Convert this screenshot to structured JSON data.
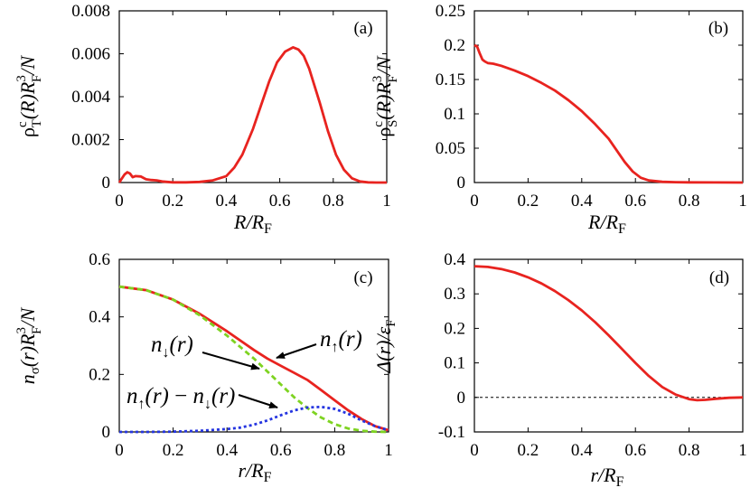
{
  "colors": {
    "red": "#e8231f",
    "green": "#7ed321",
    "blue": "#2535e0",
    "axis": "#000000"
  },
  "chart_data": [
    {
      "type": "line",
      "panel": "(a)",
      "ylabel_main": "ρ",
      "ylabel_sup": "c",
      "ylabel_sub": "T",
      "ylabel_mid": "(R)R",
      "ylabel_sub2": "F",
      "ylabel_sup2": "3",
      "ylabel_end": "/N",
      "xlabel_main": "R/R",
      "xlabel_sub": "F",
      "xlim": [
        0,
        1
      ],
      "ylim": [
        0,
        0.008
      ],
      "xticks": [
        0,
        0.2,
        0.4,
        0.6,
        0.8,
        1
      ],
      "xtick_labels": [
        "0",
        "0.2",
        "0.4",
        "0.6",
        "0.8",
        "1"
      ],
      "yticks": [
        0,
        0.002,
        0.004,
        0.006,
        0.008
      ],
      "ytick_labels": [
        "0",
        "0.002",
        "0.004",
        "0.006",
        "0.008"
      ],
      "series": [
        {
          "name": "rho_T",
          "color": "#e8231f",
          "dash": "",
          "x": [
            0,
            0.01,
            0.02,
            0.03,
            0.04,
            0.05,
            0.06,
            0.08,
            0.1,
            0.12,
            0.14,
            0.16,
            0.2,
            0.25,
            0.3,
            0.35,
            0.4,
            0.43,
            0.46,
            0.5,
            0.53,
            0.56,
            0.59,
            0.62,
            0.65,
            0.67,
            0.69,
            0.71,
            0.73,
            0.75,
            0.78,
            0.81,
            0.84,
            0.87,
            0.9,
            0.93,
            0.96,
            1.0
          ],
          "y": [
            0,
            0.0002,
            0.00038,
            0.00048,
            0.00042,
            0.00025,
            0.0003,
            0.00028,
            0.00015,
            0.00012,
            0.0001,
            5e-05,
            1e-05,
            1e-05,
            3e-05,
            0.0001,
            0.0003,
            0.0007,
            0.0013,
            0.0025,
            0.0036,
            0.0047,
            0.0056,
            0.0061,
            0.0063,
            0.0062,
            0.0059,
            0.0053,
            0.0045,
            0.0037,
            0.0024,
            0.0013,
            0.0006,
            0.0002,
            5e-05,
            1e-05,
            0,
            0
          ]
        }
      ],
      "annotations": []
    },
    {
      "type": "line",
      "panel": "(b)",
      "ylabel_main": "ρ",
      "ylabel_sup": "c",
      "ylabel_sub": "S",
      "ylabel_mid": "(R)R",
      "ylabel_sub2": "F",
      "ylabel_sup2": "3",
      "ylabel_end": "/N",
      "xlabel_main": "R/R",
      "xlabel_sub": "F",
      "xlim": [
        0,
        1
      ],
      "ylim": [
        0,
        0.25
      ],
      "xticks": [
        0,
        0.2,
        0.4,
        0.6,
        0.8,
        1
      ],
      "xtick_labels": [
        "0",
        "0.2",
        "0.4",
        "0.6",
        "0.8",
        "1"
      ],
      "yticks": [
        0,
        0.05,
        0.1,
        0.15,
        0.2,
        0.25
      ],
      "ytick_labels": [
        "0",
        "0.05",
        "0.1",
        "0.15",
        "0.2",
        "0.25"
      ],
      "series": [
        {
          "name": "rho_S",
          "color": "#e8231f",
          "dash": "",
          "x": [
            0,
            0.01,
            0.02,
            0.03,
            0.04,
            0.05,
            0.07,
            0.1,
            0.15,
            0.2,
            0.25,
            0.3,
            0.35,
            0.4,
            0.45,
            0.5,
            0.53,
            0.56,
            0.59,
            0.62,
            0.65,
            0.7,
            0.75,
            0.8,
            0.9,
            1.0
          ],
          "y": [
            0.2,
            0.198,
            0.188,
            0.179,
            0.176,
            0.174,
            0.173,
            0.17,
            0.163,
            0.155,
            0.145,
            0.134,
            0.12,
            0.104,
            0.085,
            0.064,
            0.047,
            0.03,
            0.016,
            0.007,
            0.003,
            0.001,
            0.0005,
            0.0003,
            0.0001,
            0
          ]
        }
      ],
      "annotations": []
    },
    {
      "type": "line",
      "panel": "(c)",
      "ylabel_main": "n",
      "ylabel_sub": "σ",
      "ylabel_mid": "(r)R",
      "ylabel_sub2": "F",
      "ylabel_sup2": "3",
      "ylabel_end": "/N",
      "xlabel_main": "r/R",
      "xlabel_sub": "F",
      "xlim": [
        0,
        1
      ],
      "ylim": [
        0,
        0.6
      ],
      "xticks": [
        0,
        0.2,
        0.4,
        0.6,
        0.8,
        1
      ],
      "xtick_labels": [
        "0",
        "0.2",
        "0.4",
        "0.6",
        "0.8",
        "1"
      ],
      "yticks": [
        0,
        0.2,
        0.4,
        0.6
      ],
      "ytick_labels": [
        "0",
        "0.2",
        "0.4",
        "0.6"
      ],
      "series": [
        {
          "name": "n_up",
          "color": "#e8231f",
          "dash": "",
          "x": [
            0,
            0.1,
            0.2,
            0.3,
            0.4,
            0.5,
            0.55,
            0.6,
            0.65,
            0.7,
            0.75,
            0.8,
            0.85,
            0.9,
            0.95,
            1.0
          ],
          "y": [
            0.505,
            0.493,
            0.46,
            0.41,
            0.35,
            0.285,
            0.255,
            0.23,
            0.205,
            0.18,
            0.145,
            0.11,
            0.075,
            0.045,
            0.02,
            0.006
          ]
        },
        {
          "name": "n_down",
          "color": "#7ed321",
          "dash": "6,4",
          "x": [
            0,
            0.1,
            0.2,
            0.3,
            0.4,
            0.5,
            0.55,
            0.6,
            0.65,
            0.7,
            0.75,
            0.8,
            0.85,
            0.9,
            0.95,
            1.0
          ],
          "y": [
            0.505,
            0.493,
            0.46,
            0.405,
            0.335,
            0.255,
            0.21,
            0.165,
            0.12,
            0.082,
            0.05,
            0.027,
            0.012,
            0.004,
            0.001,
            0
          ]
        },
        {
          "name": "n_diff",
          "color": "#2535e0",
          "dash": "3,3",
          "x": [
            0,
            0.1,
            0.2,
            0.3,
            0.4,
            0.45,
            0.5,
            0.55,
            0.6,
            0.65,
            0.7,
            0.75,
            0.8,
            0.85,
            0.9,
            0.95,
            1.0
          ],
          "y": [
            0,
            0,
            0.001,
            0.004,
            0.01,
            0.015,
            0.025,
            0.04,
            0.058,
            0.075,
            0.085,
            0.087,
            0.08,
            0.063,
            0.04,
            0.02,
            0.006
          ]
        }
      ],
      "annotations": [
        {
          "label": "n_down",
          "main": "n",
          "sub": "↓",
          "tail": "(r)"
        },
        {
          "label": "n_up",
          "main": "n",
          "sub": "↑",
          "tail": "(r)"
        },
        {
          "label": "n_diff",
          "main": "n",
          "sub": "↑",
          "tail": "(r)",
          "minus": "−",
          "main2": "n",
          "sub2": "↓",
          "tail2": "(r)"
        }
      ]
    },
    {
      "type": "line",
      "panel": "(d)",
      "ylabel_main": "Δ(r)/ε",
      "ylabel_sub2": "F",
      "xlabel_main": "r/R",
      "xlabel_sub": "F",
      "xlim": [
        0,
        1
      ],
      "ylim": [
        -0.1,
        0.4
      ],
      "xticks": [
        0,
        0.2,
        0.4,
        0.6,
        0.8,
        1
      ],
      "xtick_labels": [
        "0",
        "0.2",
        "0.4",
        "0.6",
        "0.8",
        "1"
      ],
      "yticks": [
        -0.1,
        0,
        0.1,
        0.2,
        0.3,
        0.4
      ],
      "ytick_labels": [
        "-0.1",
        "0",
        "0.1",
        "0.2",
        "0.3",
        "0.4"
      ],
      "zero_line": true,
      "series": [
        {
          "name": "delta",
          "color": "#e8231f",
          "dash": "",
          "x": [
            0,
            0.05,
            0.1,
            0.15,
            0.2,
            0.25,
            0.3,
            0.35,
            0.4,
            0.45,
            0.5,
            0.55,
            0.6,
            0.65,
            0.7,
            0.75,
            0.8,
            0.83,
            0.86,
            0.9,
            0.95,
            1.0
          ],
          "y": [
            0.38,
            0.378,
            0.372,
            0.362,
            0.348,
            0.33,
            0.308,
            0.282,
            0.252,
            0.218,
            0.18,
            0.14,
            0.1,
            0.062,
            0.03,
            0.008,
            -0.005,
            -0.008,
            -0.007,
            -0.004,
            -0.001,
            0
          ]
        }
      ],
      "annotations": []
    }
  ]
}
